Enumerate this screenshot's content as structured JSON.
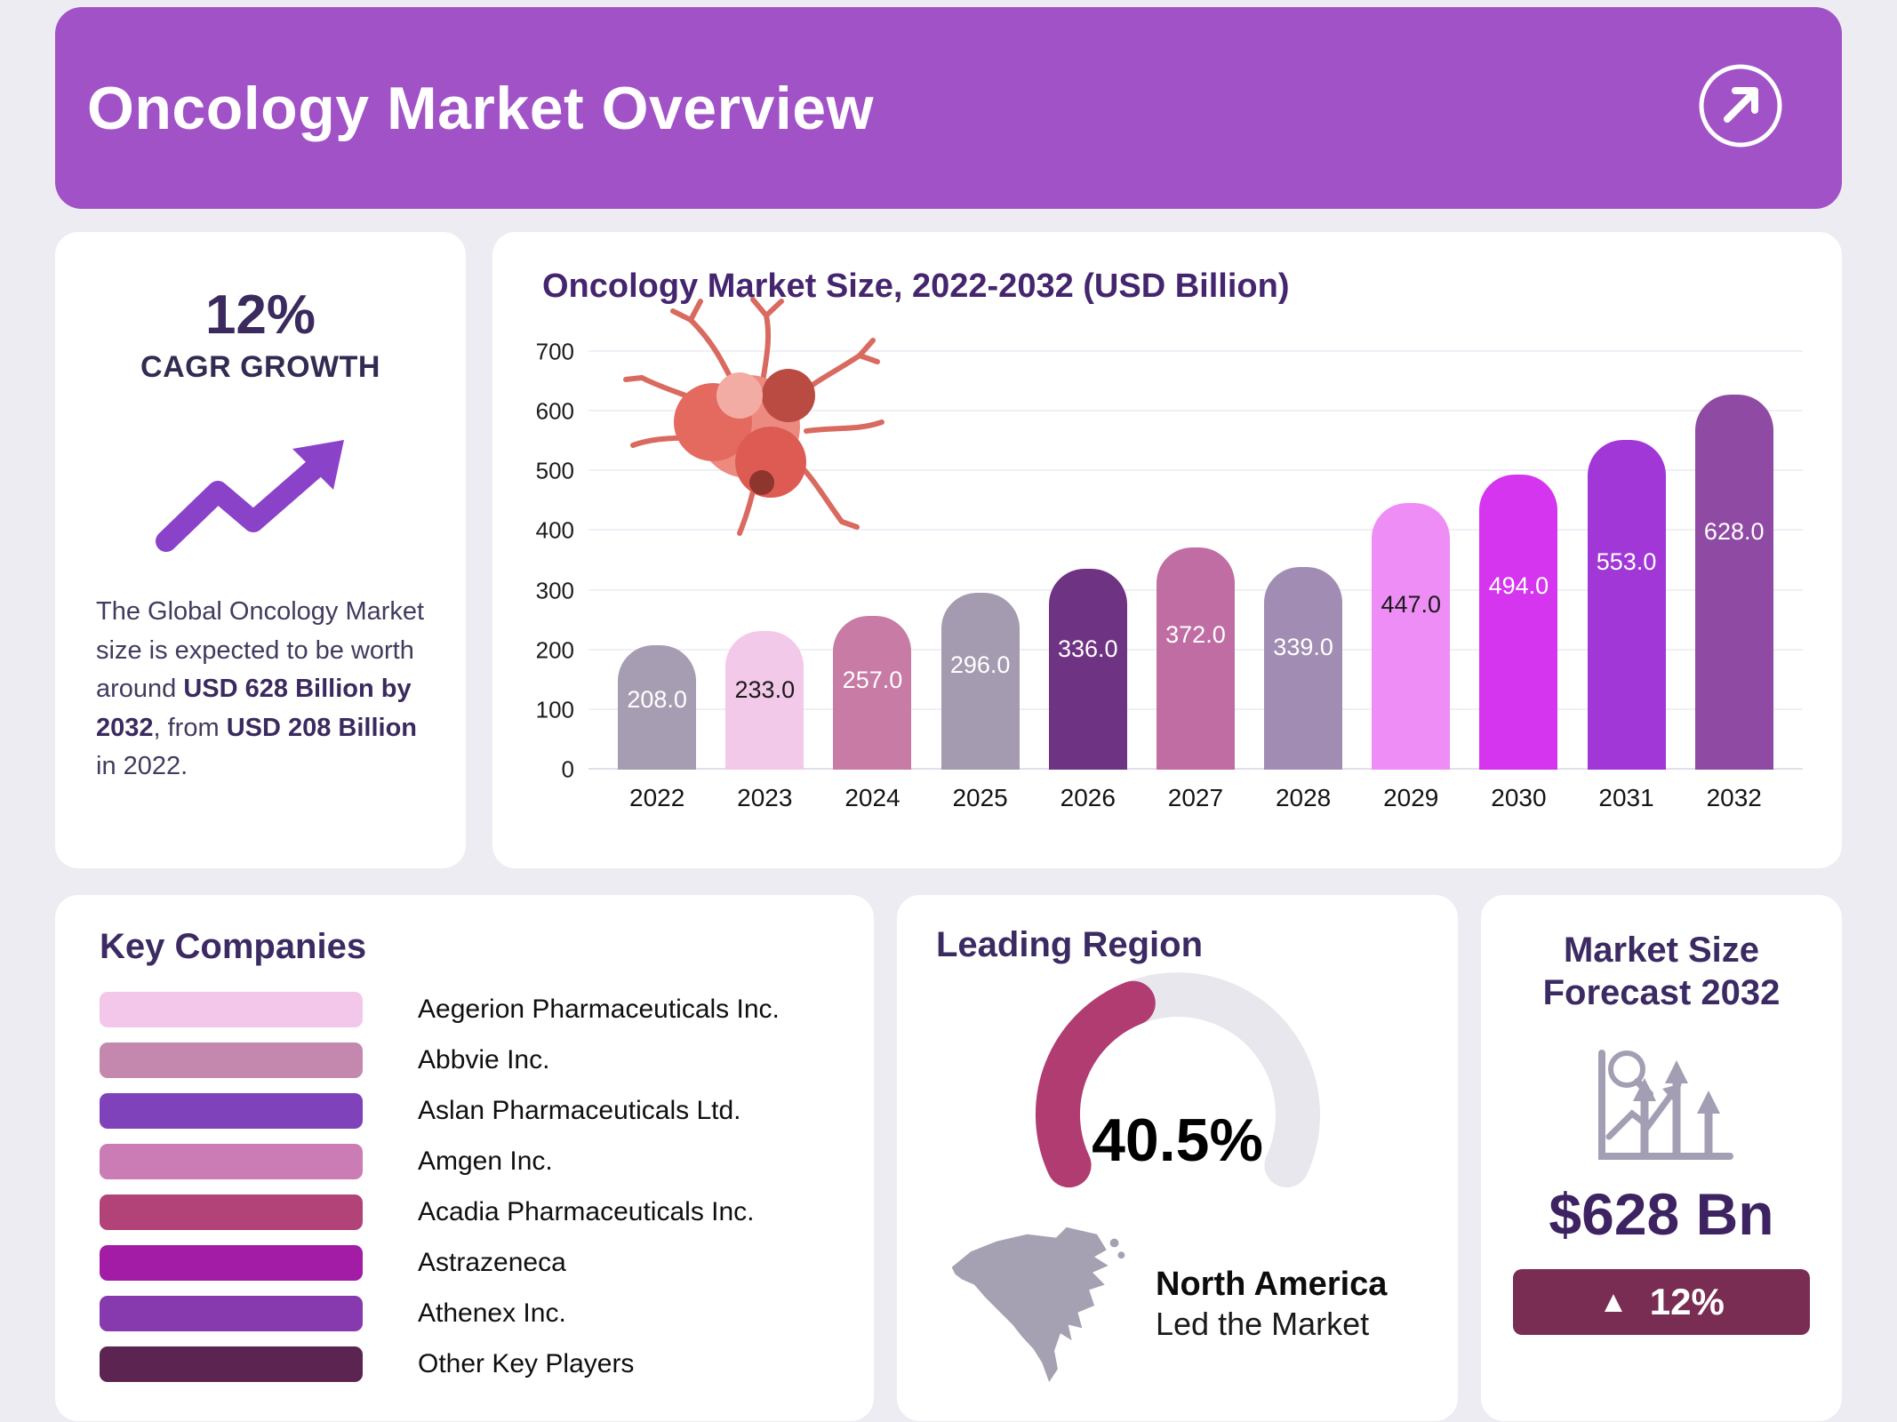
{
  "colors": {
    "header_bg": "#a152c6",
    "accent_purple": "#8a42c8",
    "badge_bg": "#7a2d52",
    "title_purple": "#3c2a62"
  },
  "header": {
    "title": "Oncology Market Overview"
  },
  "cagr_card": {
    "percent": "12%",
    "label": "CAGR GROWTH",
    "desc": {
      "t1": "The Global Oncology Market size is expected to be worth around ",
      "b1": "USD 628 Billion by 2032",
      "t2": ", from ",
      "b2": "USD 208 Billion",
      "t3": " in 2022."
    }
  },
  "chart_data": [
    {
      "type": "bar",
      "title": "Oncology Market Size, 2022-2032 (USD Billion)",
      "categories": [
        "2022",
        "2023",
        "2024",
        "2025",
        "2026",
        "2027",
        "2028",
        "2029",
        "2030",
        "2031",
        "2032"
      ],
      "values": [
        208.0,
        233.0,
        257.0,
        296.0,
        336.0,
        372.0,
        339.0,
        447.0,
        494.0,
        553.0,
        628.0
      ],
      "value_labels": [
        "208.0",
        "233.0",
        "257.0",
        "296.0",
        "336.0",
        "372.0",
        "339.0",
        "447.0",
        "494.0",
        "553.0",
        "628.0"
      ],
      "bar_colors": [
        "#a79db2",
        "#f3c9e9",
        "#c77ba5",
        "#a59bb1",
        "#6f3383",
        "#c06da4",
        "#a18db3",
        "#ee8df5",
        "#d535ee",
        "#a037d6",
        "#8f4ba3"
      ],
      "label_colors": [
        "#ffffff",
        "#1a1a1a",
        "#ffffff",
        "#ffffff",
        "#ffffff",
        "#ffffff",
        "#ffffff",
        "#1a1a1a",
        "#ffffff",
        "#ffffff",
        "#ffffff"
      ],
      "xlabel": "",
      "ylabel": "",
      "ylim": [
        0,
        700
      ],
      "yticks": [
        0,
        100,
        200,
        300,
        400,
        500,
        600,
        700
      ],
      "grid": true,
      "legend": false
    },
    {
      "type": "gauge",
      "title": "Leading Region",
      "value": 40.5,
      "max": 100,
      "label": "40.5%",
      "color": "#b03c72",
      "track": "#e9e7ee"
    }
  ],
  "key_companies": {
    "title": "Key Companies",
    "items": [
      {
        "label": "Aegerion Pharmaceuticals Inc.",
        "color": "#f2c7e9"
      },
      {
        "label": "Abbvie Inc.",
        "color": "#c487ad"
      },
      {
        "label": "Aslan Pharmaceuticals Ltd.",
        "color": "#7f42bb"
      },
      {
        "label": "Amgen Inc.",
        "color": "#cb7cb4"
      },
      {
        "label": "Acadia Pharmaceuticals Inc.",
        "color": "#b14378"
      },
      {
        "label": "Astrazeneca",
        "color": "#a31ca6"
      },
      {
        "label": "Athenex Inc.",
        "color": "#8739ae"
      },
      {
        "label": "Other Key Players",
        "color": "#5c2450"
      }
    ]
  },
  "leading_region": {
    "title": "Leading Region",
    "region": "North America",
    "subtitle": "Led the Market"
  },
  "market_forecast": {
    "title_line1": "Market Size",
    "title_line2": "Forecast 2032",
    "value": "$628 Bn",
    "up_icon": "▲",
    "badge": "12%"
  }
}
